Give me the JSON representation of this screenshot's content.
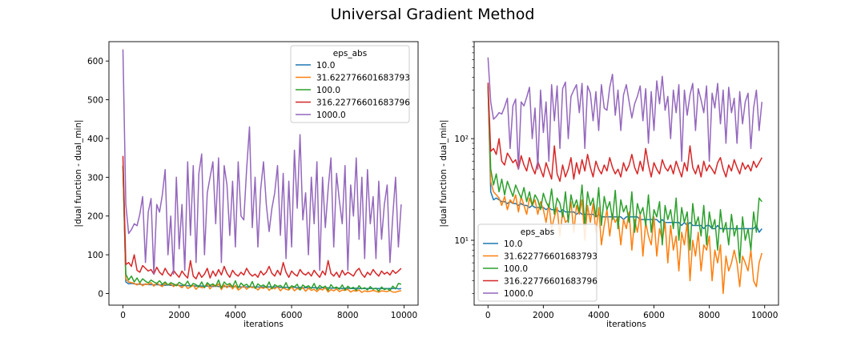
{
  "figure": {
    "title": "Universal Gradient Method"
  },
  "chart_data": [
    {
      "type": "line",
      "title": "",
      "xlabel": "iterations",
      "ylabel": "|dual function - dual_min|",
      "yscale": "linear",
      "xlim": [
        -500,
        10500
      ],
      "ylim": [
        -30,
        650
      ],
      "xticks": [
        0,
        2000,
        4000,
        6000,
        8000,
        10000
      ],
      "yticks": [
        0,
        100,
        200,
        300,
        400,
        500,
        600
      ],
      "grid": false,
      "legend": {
        "title": "eps_abs",
        "loc": "upper-right",
        "entries": [
          "10.0",
          "31.622776601683793",
          "100.0",
          "316.22776601683796",
          "1000.0"
        ]
      },
      "series_ref": "shared"
    },
    {
      "type": "line",
      "title": "",
      "xlabel": "iterations",
      "ylabel": "|dual function - dual_min|",
      "yscale": "log",
      "xlim": [
        -500,
        10500
      ],
      "ylim": [
        2.3,
        900
      ],
      "xticks": [
        0,
        2000,
        4000,
        6000,
        8000,
        10000
      ],
      "yticks": [
        10,
        100
      ],
      "ytick_labels": [
        "10¹",
        "10²"
      ],
      "grid": false,
      "legend": {
        "title": "eps_abs",
        "loc": "lower-left",
        "entries": [
          "10.0",
          "31.622776601683793",
          "100.0",
          "316.22776601683796",
          "1000.0"
        ]
      },
      "series_ref": "shared"
    }
  ],
  "shared_series": {
    "x": [
      0,
      100,
      200,
      300,
      400,
      500,
      600,
      700,
      800,
      900,
      1000,
      1100,
      1200,
      1300,
      1400,
      1500,
      1600,
      1700,
      1800,
      1900,
      2000,
      2100,
      2200,
      2300,
      2400,
      2500,
      2600,
      2700,
      2800,
      2900,
      3000,
      3100,
      3200,
      3300,
      3400,
      3500,
      3600,
      3700,
      3800,
      3900,
      4000,
      4100,
      4200,
      4300,
      4400,
      4500,
      4600,
      4700,
      4800,
      4900,
      5000,
      5100,
      5200,
      5300,
      5400,
      5500,
      5600,
      5700,
      5800,
      5900,
      6000,
      6100,
      6200,
      6300,
      6400,
      6500,
      6600,
      6700,
      6800,
      6900,
      7000,
      7100,
      7200,
      7300,
      7400,
      7500,
      7600,
      7700,
      7800,
      7900,
      8000,
      8100,
      8200,
      8300,
      8400,
      8500,
      8600,
      8700,
      8800,
      8900,
      9000,
      9100,
      9200,
      9300,
      9400,
      9500,
      9600,
      9700,
      9800,
      9900
    ],
    "series": [
      {
        "name": "10.0",
        "color": "#1f77b4",
        "values": [
          330,
          30,
          25,
          26,
          25,
          24,
          24,
          23,
          24,
          23,
          23,
          22,
          23,
          22,
          22,
          21,
          22,
          21,
          21,
          21,
          21,
          20,
          21,
          20,
          20,
          20,
          19,
          20,
          19,
          19,
          19,
          19,
          18,
          19,
          18,
          18,
          18,
          18,
          18,
          17,
          18,
          17,
          17,
          17,
          17,
          17,
          17,
          17,
          17,
          16,
          17,
          17,
          17,
          17,
          17,
          16,
          16,
          16,
          16,
          16,
          16,
          16,
          15,
          16,
          15,
          15,
          15,
          15,
          15,
          15,
          14,
          15,
          14,
          15,
          14,
          14,
          14,
          14,
          13,
          14,
          14,
          13,
          13,
          14,
          13,
          13,
          13,
          13,
          13,
          13,
          13,
          13,
          13,
          13,
          13,
          13,
          13,
          14,
          12,
          13
        ]
      },
      {
        "name": "31.622776601683793",
        "color": "#ff7f0e",
        "values": [
          330,
          38,
          30,
          28,
          26,
          22,
          27,
          20,
          25,
          23,
          28,
          19,
          27,
          22,
          18,
          26,
          22,
          25,
          18,
          24,
          20,
          15,
          23,
          13,
          17,
          21,
          11,
          19,
          15,
          16,
          24,
          12,
          22,
          18,
          25,
          10,
          22,
          15,
          23,
          12,
          21,
          9,
          14,
          20,
          11,
          18,
          15,
          17,
          9,
          16,
          13,
          19,
          8,
          16,
          12,
          18,
          7,
          15,
          11,
          9,
          17,
          7,
          13,
          10,
          15,
          6,
          14,
          8,
          11,
          5,
          12,
          9,
          15,
          4,
          10,
          7,
          12,
          5,
          9,
          8,
          11,
          4,
          8,
          6,
          9,
          3,
          7,
          5,
          6,
          8,
          6,
          3.5,
          7,
          6,
          5,
          8,
          4,
          3.5,
          6,
          7.5
        ]
      },
      {
        "name": "100.0",
        "color": "#2ca02c",
        "values": [
          330,
          50,
          35,
          45,
          30,
          40,
          28,
          38,
          32,
          27,
          35,
          30,
          26,
          33,
          24,
          30,
          22,
          28,
          25,
          20,
          29,
          24,
          21,
          32,
          18,
          26,
          23,
          17,
          30,
          15,
          28,
          21,
          25,
          19,
          35,
          14,
          30,
          22,
          26,
          17,
          33,
          14,
          27,
          20,
          24,
          16,
          31,
          13,
          25,
          19,
          22,
          15,
          30,
          12,
          23,
          18,
          21,
          14,
          28,
          12,
          20,
          17,
          24,
          9,
          22,
          16,
          20,
          13,
          26,
          10,
          21,
          15,
          19,
          8,
          23,
          14,
          17,
          11,
          22,
          9,
          19,
          13,
          16,
          8,
          20,
          12,
          15,
          9,
          18,
          11,
          14,
          6,
          17,
          10,
          13,
          8,
          19,
          12,
          26,
          24
        ]
      },
      {
        "name": "316.22776601683796",
        "color": "#d62728",
        "values": [
          355,
          75,
          80,
          70,
          100,
          60,
          55,
          72,
          65,
          58,
          62,
          50,
          68,
          55,
          48,
          65,
          52,
          45,
          60,
          50,
          42,
          58,
          48,
          40,
          85,
          45,
          38,
          55,
          42,
          50,
          65,
          40,
          58,
          45,
          62,
          48,
          70,
          52,
          42,
          60,
          50,
          45,
          55,
          48,
          65,
          52,
          45,
          50,
          42,
          58,
          48,
          55,
          70,
          52,
          45,
          60,
          48,
          80,
          55,
          42,
          58,
          50,
          45,
          62,
          52,
          48,
          55,
          45,
          60,
          50,
          42,
          58,
          48,
          85,
          52,
          45,
          55,
          42,
          60,
          48,
          55,
          50,
          45,
          58,
          65,
          50,
          42,
          55,
          48,
          62,
          52,
          45,
          58,
          50,
          55,
          48,
          60,
          52,
          58,
          65
        ]
      },
      {
        "name": "1000.0",
        "color": "#9467bd",
        "values": [
          630,
          230,
          155,
          165,
          180,
          175,
          205,
          250,
          80,
          210,
          245,
          50,
          230,
          210,
          255,
          320,
          100,
          200,
          50,
          300,
          115,
          230,
          60,
          340,
          150,
          330,
          80,
          310,
          360,
          100,
          260,
          300,
          340,
          180,
          350,
          80,
          330,
          280,
          150,
          290,
          120,
          340,
          200,
          190,
          320,
          430,
          170,
          300,
          120,
          270,
          340,
          230,
          160,
          220,
          260,
          330,
          150,
          310,
          90,
          290,
          120,
          370,
          220,
          410,
          190,
          260,
          100,
          300,
          180,
          340,
          60,
          300,
          170,
          270,
          350,
          120,
          310,
          240,
          180,
          330,
          60,
          280,
          200,
          350,
          140,
          300,
          90,
          320,
          180,
          250,
          90,
          290,
          140,
          230,
          280,
          80,
          200,
          300,
          120,
          230
        ]
      }
    ]
  }
}
